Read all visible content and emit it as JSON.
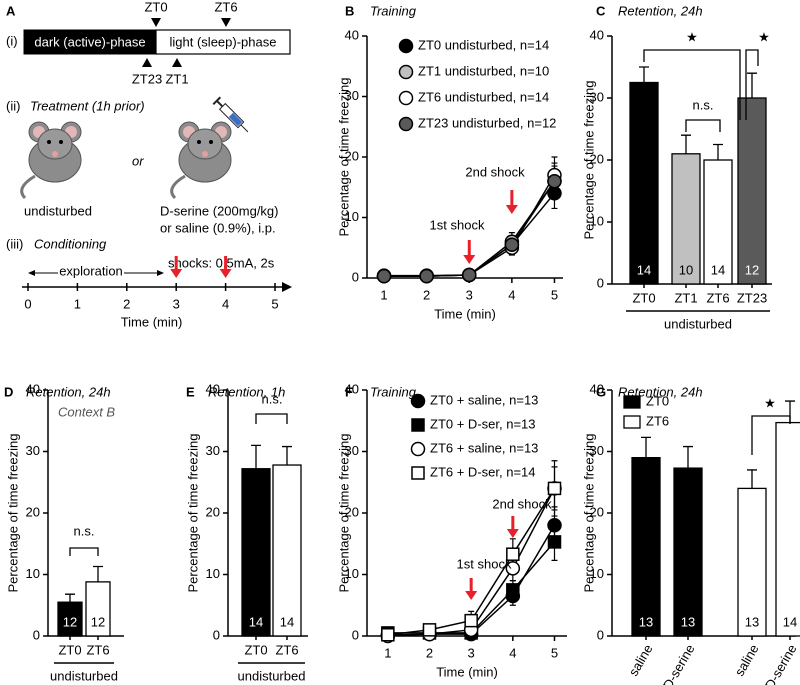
{
  "panel_a": {
    "label": "A",
    "phases": {
      "row": "(i)",
      "dark": "dark (active)-phase",
      "light": "light (sleep)-phase",
      "top_markers": [
        "ZT0",
        "ZT6"
      ],
      "bottom_markers": [
        "ZT23",
        "ZT1"
      ]
    },
    "treatment": {
      "row": "(ii)",
      "title": "Treatment (1h prior)",
      "left": "undisturbed",
      "or": "or",
      "right_lines": [
        "D-serine (200mg/kg)",
        "or saline (0.9%), i.p."
      ]
    },
    "conditioning": {
      "row": "(iii)",
      "title": "Conditioning",
      "shocks": "shocks: 0.5mA, 2s",
      "exploration": "exploration",
      "xlim": [
        0,
        5
      ],
      "xticks": [
        0,
        1,
        2,
        3,
        4,
        5
      ],
      "xlabel": "Time (min)",
      "shock_times": [
        3,
        4
      ]
    }
  },
  "chart_data": [
    {
      "type": "line",
      "panel": "B",
      "title": "Training",
      "xlabel": "Time (min)",
      "ylabel": "Percentage of time freezing",
      "x": [
        1,
        2,
        3,
        4,
        5
      ],
      "xlim": [
        0.6,
        5.2
      ],
      "xticks": [
        1,
        2,
        3,
        4,
        5
      ],
      "ylim": [
        0,
        40
      ],
      "yticks": [
        0,
        10,
        20,
        30,
        40
      ],
      "legend": "top-left",
      "series": [
        {
          "name": "ZT0 undisturbed, n=14",
          "color": "#000000",
          "marker": "circle",
          "values": [
            0.3,
            0.3,
            0.5,
            5.5,
            14
          ],
          "errors": [
            0.2,
            0.2,
            0.2,
            1.5,
            2.5
          ]
        },
        {
          "name": "ZT1 undisturbed, n=10",
          "color": "#c0c0c0",
          "marker": "circle",
          "values": [
            0.3,
            0.3,
            0.5,
            6,
            16
          ],
          "errors": [
            0.2,
            0.2,
            0.2,
            1.5,
            3
          ]
        },
        {
          "name": "ZT6 undisturbed, n=14",
          "color": "#ffffff",
          "marker": "circle",
          "values": [
            0.4,
            0.4,
            0.5,
            5,
            17
          ],
          "errors": [
            0.2,
            0.2,
            0.2,
            1.2,
            3
          ]
        },
        {
          "name": "ZT23 undisturbed, n=12",
          "color": "#5a5a5a",
          "marker": "circle",
          "values": [
            0.3,
            0.3,
            0.5,
            5.5,
            16
          ],
          "errors": [
            0.2,
            0.2,
            0.2,
            1.5,
            2.5
          ]
        }
      ],
      "annotations": [
        {
          "text": "1st shock",
          "x": 3
        },
        {
          "text": "2nd shock",
          "x": 4
        }
      ]
    },
    {
      "type": "bar",
      "panel": "C",
      "title": "Retention, 24h",
      "ylabel": "Percentage of time freezing",
      "categories": [
        "ZT0",
        "ZT1",
        "ZT6",
        "ZT23"
      ],
      "values": [
        32.5,
        21,
        20,
        30
      ],
      "errors": [
        2.5,
        3,
        2.5,
        4
      ],
      "colors": [
        "#000000",
        "#c0c0c0",
        "#ffffff",
        "#5a5a5a"
      ],
      "n_labels": [
        14,
        10,
        14,
        12
      ],
      "ylim": [
        0,
        40
      ],
      "yticks": [
        0,
        10,
        20,
        30,
        40
      ],
      "group_label": "undisturbed",
      "significance": [
        "★",
        "★",
        "n.s."
      ]
    },
    {
      "type": "bar",
      "panel": "D",
      "title": "Retention, 24h",
      "subtitle": "Context B",
      "ylabel": "Percentage of time freezing",
      "categories": [
        "ZT0",
        "ZT6"
      ],
      "values": [
        5.5,
        8.8
      ],
      "errors": [
        1.3,
        2.5
      ],
      "colors": [
        "#000000",
        "#ffffff"
      ],
      "n_labels": [
        12,
        12
      ],
      "ylim": [
        0,
        40
      ],
      "yticks": [
        0,
        10,
        20,
        30,
        40
      ],
      "group_label": "undisturbed",
      "significance": [
        "n.s."
      ]
    },
    {
      "type": "bar",
      "panel": "E",
      "title": "Retention, 1h",
      "ylabel": "Percentage of time freezing",
      "categories": [
        "ZT0",
        "ZT6"
      ],
      "values": [
        27.2,
        27.8
      ],
      "errors": [
        3.8,
        3
      ],
      "colors": [
        "#000000",
        "#ffffff"
      ],
      "n_labels": [
        14,
        14
      ],
      "ylim": [
        0,
        40
      ],
      "yticks": [
        0,
        10,
        20,
        30,
        40
      ],
      "group_label": "undisturbed",
      "significance": [
        "n.s."
      ]
    },
    {
      "type": "line",
      "panel": "F",
      "title": "Training",
      "xlabel": "Time (min)",
      "ylabel": "Percentage of time freezing",
      "x": [
        1,
        2,
        3,
        4,
        5
      ],
      "xlim": [
        0.5,
        5.3
      ],
      "xticks": [
        1,
        2,
        3,
        4,
        5
      ],
      "ylim": [
        0,
        40
      ],
      "yticks": [
        0,
        10,
        20,
        30,
        40
      ],
      "legend": "top-left",
      "series": [
        {
          "name": "ZT0 + saline, n=13",
          "color": "#000000",
          "marker": "circle",
          "values": [
            0.2,
            0.3,
            0.3,
            6.5,
            18
          ],
          "errors": [
            0.3,
            0.3,
            0.3,
            1.5,
            3
          ]
        },
        {
          "name": "ZT0 + D-ser, n=13",
          "color": "#000000",
          "marker": "square",
          "values": [
            0.5,
            0.5,
            0.5,
            7.5,
            15.3
          ],
          "errors": [
            0.3,
            0.3,
            0.5,
            1.5,
            3
          ]
        },
        {
          "name": "ZT6 + saline, n=13",
          "color": "#ffffff",
          "marker": "circle",
          "values": [
            0,
            0.3,
            1,
            11,
            24
          ],
          "errors": [
            0.2,
            0.3,
            1,
            2,
            3.5
          ]
        },
        {
          "name": "ZT6 + D-ser, n=14",
          "color": "#ffffff",
          "marker": "square",
          "values": [
            0.2,
            1,
            2.5,
            13.3,
            24
          ],
          "errors": [
            0.3,
            0.8,
            1.5,
            2.5,
            4.5
          ]
        }
      ],
      "annotations": [
        {
          "text": "1st shock",
          "x": 3
        },
        {
          "text": "2nd shock",
          "x": 4
        }
      ]
    },
    {
      "type": "bar",
      "panel": "G",
      "title": "Retention, 24h",
      "ylabel": "Percentage of time freezing",
      "categories": [
        "saline",
        "D-serine",
        "saline",
        "D-serine"
      ],
      "values": [
        29,
        27.3,
        24,
        34.7
      ],
      "errors": [
        3.3,
        3.5,
        3,
        3.5
      ],
      "colors": [
        "#000000",
        "#000000",
        "#ffffff",
        "#ffffff"
      ],
      "n_labels": [
        13,
        13,
        13,
        14
      ],
      "ylim": [
        0,
        40
      ],
      "yticks": [
        0,
        10,
        20,
        30,
        40
      ],
      "legend": "top-left",
      "legend_entries": [
        {
          "name": "ZT0",
          "color": "#000000"
        },
        {
          "name": "ZT6",
          "color": "#ffffff"
        }
      ],
      "significance": [
        "★"
      ]
    }
  ]
}
